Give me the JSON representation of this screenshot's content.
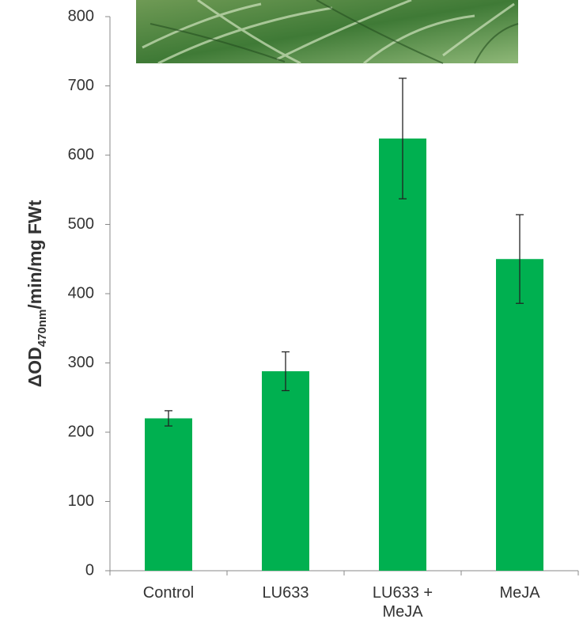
{
  "chart_data": {
    "type": "bar",
    "ylabel": {
      "main": "ΔOD",
      "subscript": "470nm",
      "suffix": "/min/mg FWt"
    },
    "categories": [
      "Control",
      "LU633",
      "LU633 + MeJA",
      "MeJA"
    ],
    "values": [
      220,
      288,
      624,
      450
    ],
    "errors": [
      11,
      28,
      87,
      64
    ],
    "color": "#00b050",
    "ylim": [
      0,
      800
    ],
    "yticks": [
      0,
      100,
      200,
      300,
      400,
      500,
      600,
      700,
      800
    ]
  }
}
